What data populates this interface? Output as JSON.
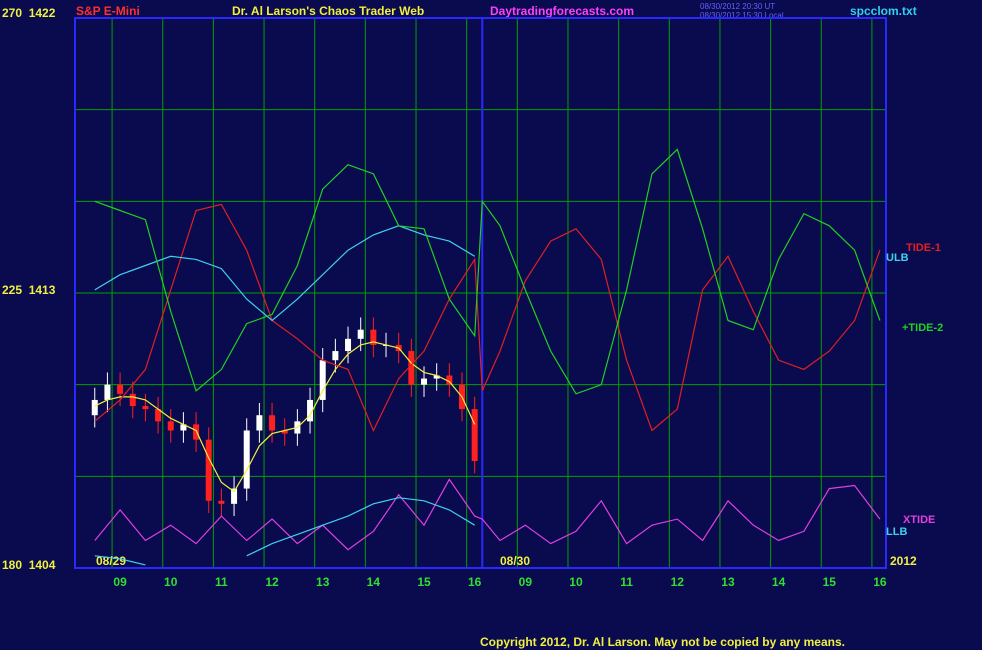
{
  "chart_data": {
    "type": "line",
    "title": "S&P E-Mini",
    "subtitle": "Dr. Al Larson's Chaos Trader Web",
    "site": "Daytradingforecasts.com",
    "timestamps": [
      "08/30/2012 20:30 UT",
      "08/30/2012 15:30 Local"
    ],
    "file": "spcclom.txt",
    "copyright": "Copyright 2012, Dr. Al Larson. May not be copied by any means.",
    "annotations": [
      "08/29",
      "08/30",
      "2012"
    ],
    "xlim": [
      0.11,
      16.12
    ],
    "ylim": [
      1404,
      1422
    ],
    "yticks": [
      {
        "value": 1422,
        "label": "270  1422"
      },
      {
        "value": 1413,
        "label": "225  1413"
      },
      {
        "value": 1404,
        "label": "180  1404"
      }
    ],
    "ygrid": [
      1404,
      1407,
      1410,
      1413,
      1416,
      1419,
      1422
    ],
    "xticks": [
      {
        "value": 1,
        "label": "09"
      },
      {
        "value": 2,
        "label": "10"
      },
      {
        "value": 3,
        "label": "11"
      },
      {
        "value": 4,
        "label": "12"
      },
      {
        "value": 5,
        "label": "13"
      },
      {
        "value": 6,
        "label": "14"
      },
      {
        "value": 7,
        "label": "15"
      },
      {
        "value": 8,
        "label": "16"
      },
      {
        "value": 9,
        "label": "09"
      },
      {
        "value": 10,
        "label": "10"
      },
      {
        "value": 11,
        "label": "11"
      },
      {
        "value": 12,
        "label": "12"
      },
      {
        "value": 13,
        "label": "13"
      },
      {
        "value": 14,
        "label": "14"
      },
      {
        "value": 15,
        "label": "15"
      },
      {
        "value": 16,
        "label": "16"
      }
    ],
    "divider": 8.15,
    "grid": true,
    "x": [
      0.5,
      1,
      1.5,
      2,
      2.5,
      3,
      3.5,
      4,
      4.5,
      5,
      5.5,
      6,
      6.5,
      7,
      7.5,
      8,
      8.15,
      8.5,
      9,
      9.5,
      10,
      10.5,
      11,
      11.5,
      12,
      12.5,
      13,
      13.5,
      14,
      14.5,
      15,
      15.5,
      16
    ],
    "series": [
      {
        "name": "TIDE-1",
        "color": "#e02020",
        "values": [
          1408.8,
          1409.5,
          1410.5,
          1413.1,
          1415.7,
          1415.9,
          1414.4,
          1412.1,
          1411.5,
          1410.8,
          1410.5,
          1408.5,
          1410.2,
          1411.1,
          1412.8,
          1414.1,
          1409.8,
          1411.1,
          1413.4,
          1414.7,
          1415.1,
          1414.1,
          1410.8,
          1408.5,
          1409.2,
          1413.1,
          1414.2,
          1412.4,
          1410.8,
          1410.5,
          1411.1,
          1412.1,
          1414.4
        ]
      },
      {
        "name": "ULB",
        "color": "#40d0f0",
        "values": [
          1413.1,
          1413.6,
          1413.9,
          1414.2,
          1414.1,
          1413.8,
          1412.8,
          1412.1,
          1412.8,
          1413.6,
          1414.4,
          1414.9,
          1415.2,
          1414.9,
          1414.7,
          1414.2,
          null,
          null,
          null,
          null,
          null,
          null,
          null,
          null,
          null,
          null,
          null,
          null,
          null,
          null,
          null,
          null,
          null
        ]
      },
      {
        "name": "+TIDE-2",
        "color": "#20d020",
        "values": [
          1416.0,
          1415.7,
          1415.4,
          1412.4,
          1409.8,
          1410.5,
          1412.0,
          1412.3,
          1413.9,
          1416.4,
          1417.2,
          1416.9,
          1415.2,
          1415.1,
          1412.8,
          1411.6,
          1416.0,
          1415.2,
          1413.1,
          1411.1,
          1409.7,
          1410.0,
          1413.1,
          1416.9,
          1417.7,
          1415.1,
          1412.1,
          1411.8,
          1414.1,
          1415.6,
          1415.2,
          1414.4,
          1412.1
        ]
      },
      {
        "name": "XTIDE",
        "color": "#e040e0",
        "values": [
          1404.9,
          1405.9,
          1404.9,
          1405.4,
          1404.8,
          1405.7,
          1404.9,
          1405.6,
          1404.8,
          1405.4,
          1404.6,
          1405.2,
          1406.4,
          1405.4,
          1406.9,
          1405.7,
          1405.6,
          1404.9,
          1405.4,
          1404.8,
          1405.2,
          1406.2,
          1404.8,
          1405.4,
          1405.6,
          1404.9,
          1406.2,
          1405.4,
          1404.9,
          1405.2,
          1406.6,
          1406.7,
          1405.6
        ]
      },
      {
        "name": "LLB",
        "color": "#40d0f0",
        "values": [
          1404.4,
          1404.3,
          1404.1,
          null,
          null,
          null,
          1404.4,
          1404.8,
          1405.1,
          1405.4,
          1405.7,
          1406.1,
          1406.3,
          1406.2,
          1405.9,
          1405.4,
          null,
          null,
          null,
          null,
          null,
          null,
          null,
          null,
          null,
          null,
          null,
          null,
          null,
          null,
          null,
          null,
          null
        ]
      }
    ],
    "price": {
      "up_color": "#ffffff",
      "down_color": "#ff2020",
      "average_color": "#f0f040",
      "x": [
        0.5,
        0.75,
        1,
        1.25,
        1.5,
        1.75,
        2,
        2.25,
        2.5,
        2.75,
        3,
        3.25,
        3.5,
        3.75,
        4,
        4.25,
        4.5,
        4.75,
        5,
        5.25,
        5.5,
        5.75,
        6,
        6.25,
        6.5,
        6.75,
        7,
        7.25,
        7.5,
        7.75,
        8
      ],
      "open": [
        1409.0,
        1409.5,
        1410.0,
        1409.7,
        1409.3,
        1409.2,
        1408.8,
        1408.5,
        1408.7,
        1408.2,
        1406.2,
        1406.1,
        1406.6,
        1408.5,
        1409.0,
        1408.5,
        1408.4,
        1408.8,
        1409.5,
        1410.8,
        1411.1,
        1411.5,
        1411.8,
        1411.3,
        1411.3,
        1411.1,
        1410.0,
        1410.2,
        1410.3,
        1410.0,
        1409.2
      ],
      "high": [
        1409.9,
        1410.4,
        1410.4,
        1410.1,
        1409.7,
        1409.6,
        1409.2,
        1409.1,
        1409.1,
        1408.6,
        1406.6,
        1407.0,
        1408.9,
        1409.4,
        1409.4,
        1408.9,
        1409.2,
        1409.9,
        1411.2,
        1411.5,
        1411.9,
        1412.2,
        1412.2,
        1411.7,
        1411.7,
        1411.5,
        1410.6,
        1410.7,
        1410.7,
        1410.4,
        1409.6
      ],
      "low": [
        1408.6,
        1409.1,
        1409.3,
        1408.9,
        1408.8,
        1408.4,
        1408.1,
        1408.1,
        1407.8,
        1405.8,
        1405.7,
        1405.7,
        1406.2,
        1408.1,
        1408.1,
        1408.0,
        1408.0,
        1408.4,
        1409.1,
        1410.4,
        1410.7,
        1411.1,
        1410.9,
        1410.9,
        1410.7,
        1409.6,
        1409.6,
        1409.8,
        1409.6,
        1408.8,
        1407.1
      ],
      "close": [
        1409.5,
        1410.0,
        1409.7,
        1409.3,
        1409.2,
        1408.8,
        1408.5,
        1408.7,
        1408.2,
        1406.2,
        1406.1,
        1406.6,
        1408.5,
        1409.0,
        1408.5,
        1408.4,
        1408.8,
        1409.5,
        1410.8,
        1411.1,
        1411.5,
        1411.8,
        1411.3,
        1411.3,
        1411.1,
        1410.0,
        1410.2,
        1410.3,
        1410.0,
        1409.2,
        1407.5
      ],
      "average": [
        1409.3,
        1409.5,
        1409.6,
        1409.6,
        1409.5,
        1409.2,
        1408.9,
        1408.7,
        1408.5,
        1407.6,
        1406.8,
        1406.5,
        1407.2,
        1408.0,
        1408.4,
        1408.5,
        1408.6,
        1409.0,
        1409.8,
        1410.5,
        1411.0,
        1411.3,
        1411.4,
        1411.3,
        1411.2,
        1410.7,
        1410.4,
        1410.3,
        1410.1,
        1409.6,
        1408.7
      ]
    }
  }
}
